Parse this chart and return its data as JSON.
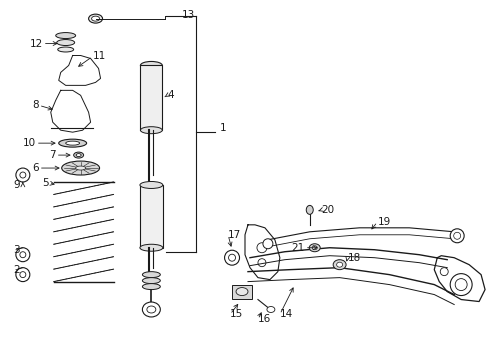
{
  "bg_color": "#ffffff",
  "line_color": "#1a1a1a",
  "fig_width": 4.89,
  "fig_height": 3.6,
  "dpi": 100,
  "label_fontsize": 7.5,
  "lw_thin": 0.6,
  "lw_med": 1.0,
  "lw_thick": 1.4
}
